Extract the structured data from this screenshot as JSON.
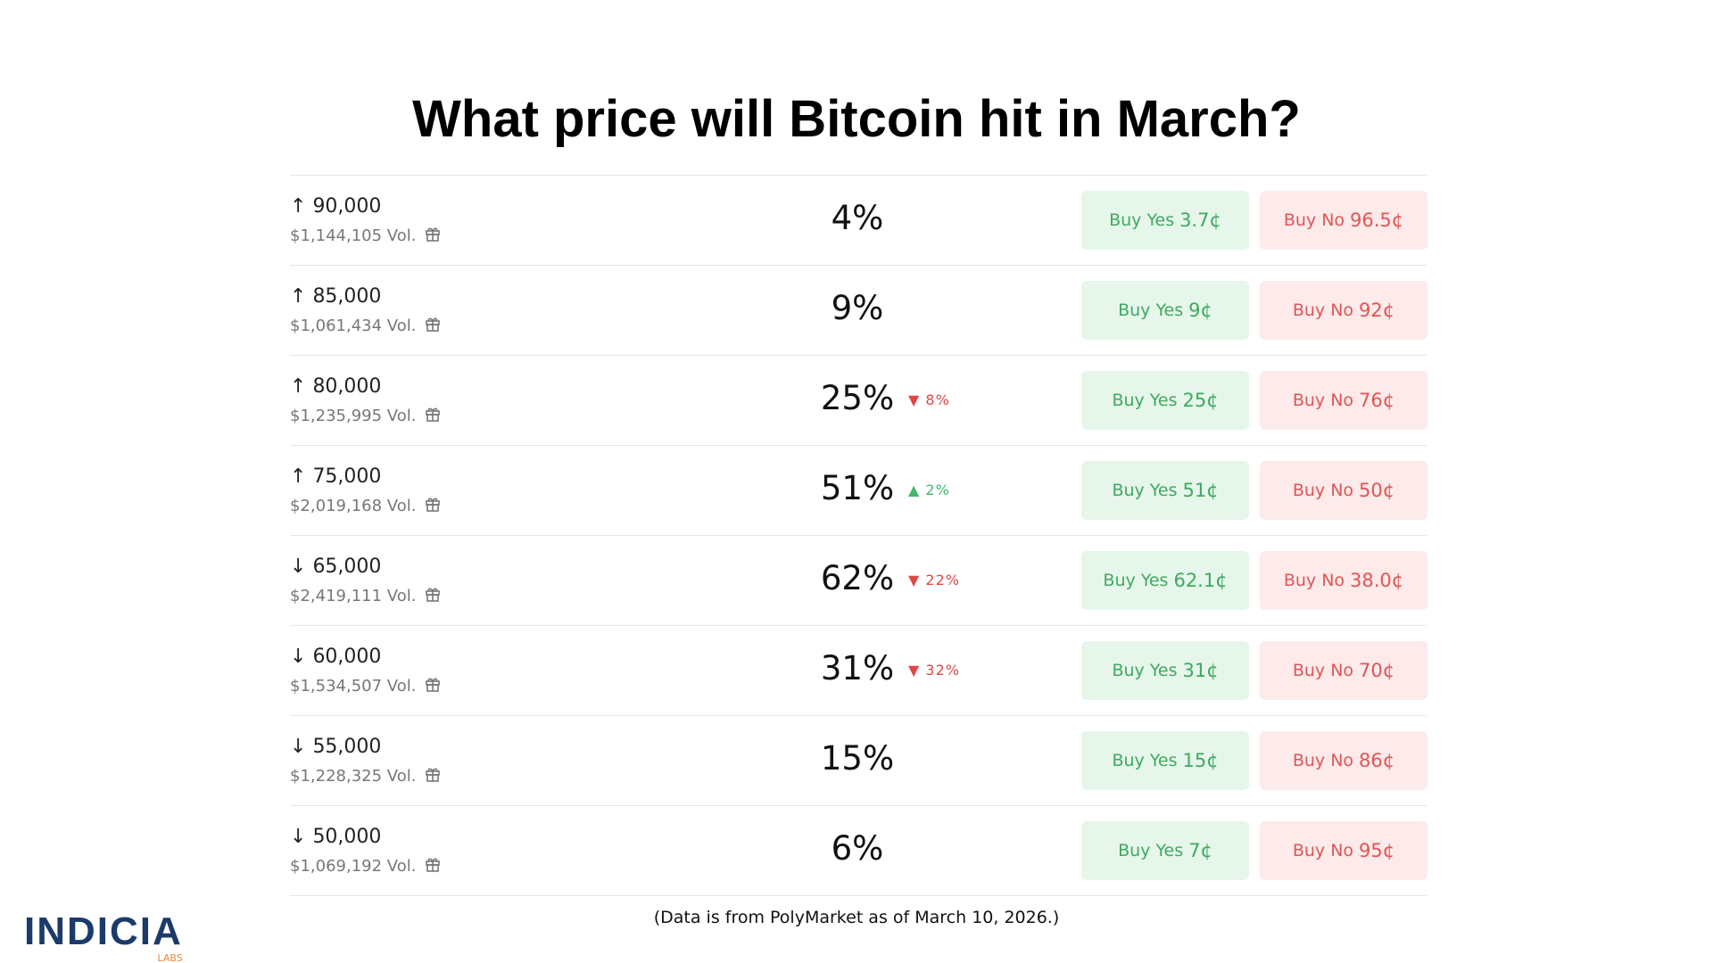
{
  "title": "What price will Bitcoin hit in March?",
  "rows": [
    {
      "arrow": "↑",
      "price": "90,000",
      "volume": "$1,144,105 Vol.",
      "chance": "4%",
      "change": null,
      "change_direction": null,
      "yes_label": "Buy Yes",
      "yes_price": "3.7¢",
      "no_label": "Buy No",
      "no_price": "96.5¢"
    },
    {
      "arrow": "↑",
      "price": "85,000",
      "volume": "$1,061,434 Vol.",
      "chance": "9%",
      "change": null,
      "change_direction": null,
      "yes_label": "Buy Yes",
      "yes_price": "9¢",
      "no_label": "Buy No",
      "no_price": "92¢"
    },
    {
      "arrow": "↑",
      "price": "80,000",
      "volume": "$1,235,995 Vol.",
      "chance": "25%",
      "change": "8%",
      "change_direction": "down",
      "yes_label": "Buy Yes",
      "yes_price": "25¢",
      "no_label": "Buy No",
      "no_price": "76¢"
    },
    {
      "arrow": "↑",
      "price": "75,000",
      "volume": "$2,019,168 Vol.",
      "chance": "51%",
      "change": "2%",
      "change_direction": "up",
      "yes_label": "Buy Yes",
      "yes_price": "51¢",
      "no_label": "Buy No",
      "no_price": "50¢"
    },
    {
      "arrow": "↓",
      "price": "65,000",
      "volume": "$2,419,111 Vol.",
      "chance": "62%",
      "change": "22%",
      "change_direction": "down",
      "yes_label": "Buy Yes",
      "yes_price": "62.1¢",
      "no_label": "Buy No",
      "no_price": "38.0¢"
    },
    {
      "arrow": "↓",
      "price": "60,000",
      "volume": "$1,534,507 Vol.",
      "chance": "31%",
      "change": "32%",
      "change_direction": "down",
      "yes_label": "Buy Yes",
      "yes_price": "31¢",
      "no_label": "Buy No",
      "no_price": "70¢"
    },
    {
      "arrow": "↓",
      "price": "55,000",
      "volume": "$1,228,325 Vol.",
      "chance": "15%",
      "change": null,
      "change_direction": null,
      "yes_label": "Buy Yes",
      "yes_price": "15¢",
      "no_label": "Buy No",
      "no_price": "86¢"
    },
    {
      "arrow": "↓",
      "price": "50,000",
      "volume": "$1,069,192 Vol.",
      "chance": "6%",
      "change": null,
      "change_direction": null,
      "yes_label": "Buy Yes",
      "yes_price": "7¢",
      "no_label": "Buy No",
      "no_price": "95¢"
    }
  ],
  "footer": "(Data is from PolyMarket as of March 10, 2026.)",
  "logo": {
    "name": "INDICIA",
    "sub": "LABS"
  }
}
